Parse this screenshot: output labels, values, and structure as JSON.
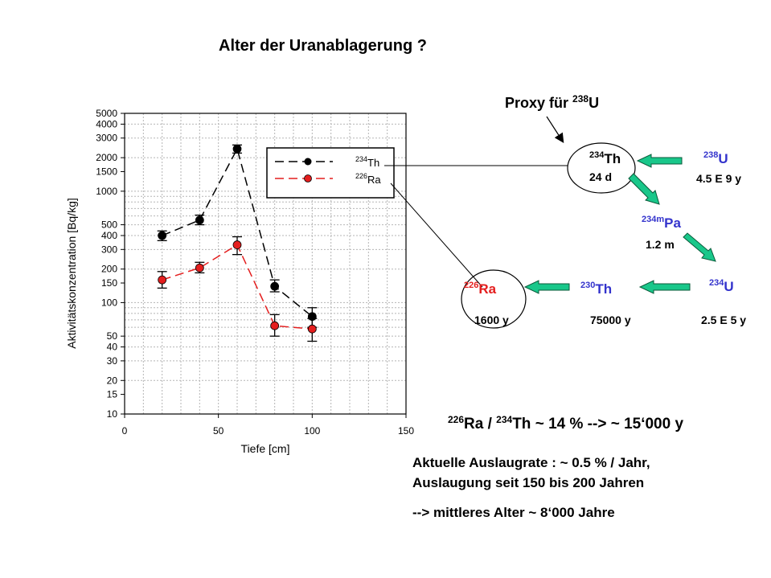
{
  "title": "Alter der Uranablagerung ?",
  "chart_data": {
    "type": "line",
    "xlabel": "Tiefe [cm]",
    "ylabel": "Aktivitätskonzentration [Bq/kg]",
    "xlim": [
      0,
      150
    ],
    "ylim": [
      10,
      5000
    ],
    "yscale": "log",
    "grid": true,
    "legend_position": "top-right",
    "x_ticks": [
      "0",
      "50",
      "100",
      "150"
    ],
    "y_ticks": [
      "10",
      "15",
      "20",
      "30",
      "40",
      "50",
      "100",
      "150",
      "200",
      "300",
      "400",
      "500",
      "1000",
      "1500",
      "2000",
      "3000",
      "4000",
      "5000"
    ],
    "series": [
      {
        "name_mass": "234",
        "name_elem": "Th",
        "color": "#000000",
        "x": [
          20,
          40,
          60,
          80,
          100
        ],
        "y": [
          400,
          550,
          2400,
          140,
          75
        ],
        "err_low": [
          360,
          500,
          2200,
          125,
          60
        ],
        "err_high": [
          440,
          610,
          2600,
          160,
          90
        ]
      },
      {
        "name_mass": "226",
        "name_elem": "Ra",
        "color": "#e41e1e",
        "x": [
          20,
          40,
          60,
          80,
          100
        ],
        "y": [
          160,
          205,
          330,
          62,
          58
        ],
        "err_low": [
          135,
          185,
          270,
          50,
          45
        ],
        "err_high": [
          190,
          230,
          390,
          78,
          72
        ]
      }
    ]
  },
  "decay": {
    "proxy": {
      "text": "Proxy für ",
      "mass": "238",
      "elem": "U"
    },
    "u238": {
      "mass": "238",
      "elem": "U",
      "life": "4.5 E 9 y"
    },
    "th234": {
      "mass": "234",
      "elem": "Th",
      "life": "24 d"
    },
    "pa234m": {
      "mass": "234m",
      "elem": "Pa",
      "life": "1.2 m"
    },
    "u234": {
      "mass": "234",
      "elem": "U",
      "life": "2.5 E 5 y"
    },
    "th230": {
      "mass": "230",
      "elem": "Th",
      "life": "75000 y"
    },
    "ra226": {
      "mass": "226",
      "elem": "Ra",
      "life": "1600 y"
    }
  },
  "ratio": {
    "m1": "226",
    "e1": "Ra",
    "sep": " / ",
    "m2": "234",
    "e2": "Th",
    "rest": " ~ 14 % --> ~ 15‘000 y"
  },
  "notes": {
    "line1": "Aktuelle Auslaugrate : ~ 0.5 % / Jahr,",
    "line2": "Auslaugung seit 150 bis 200 Jahren",
    "line3": "--> mittleres Alter  ~ 8‘000  Jahre"
  }
}
